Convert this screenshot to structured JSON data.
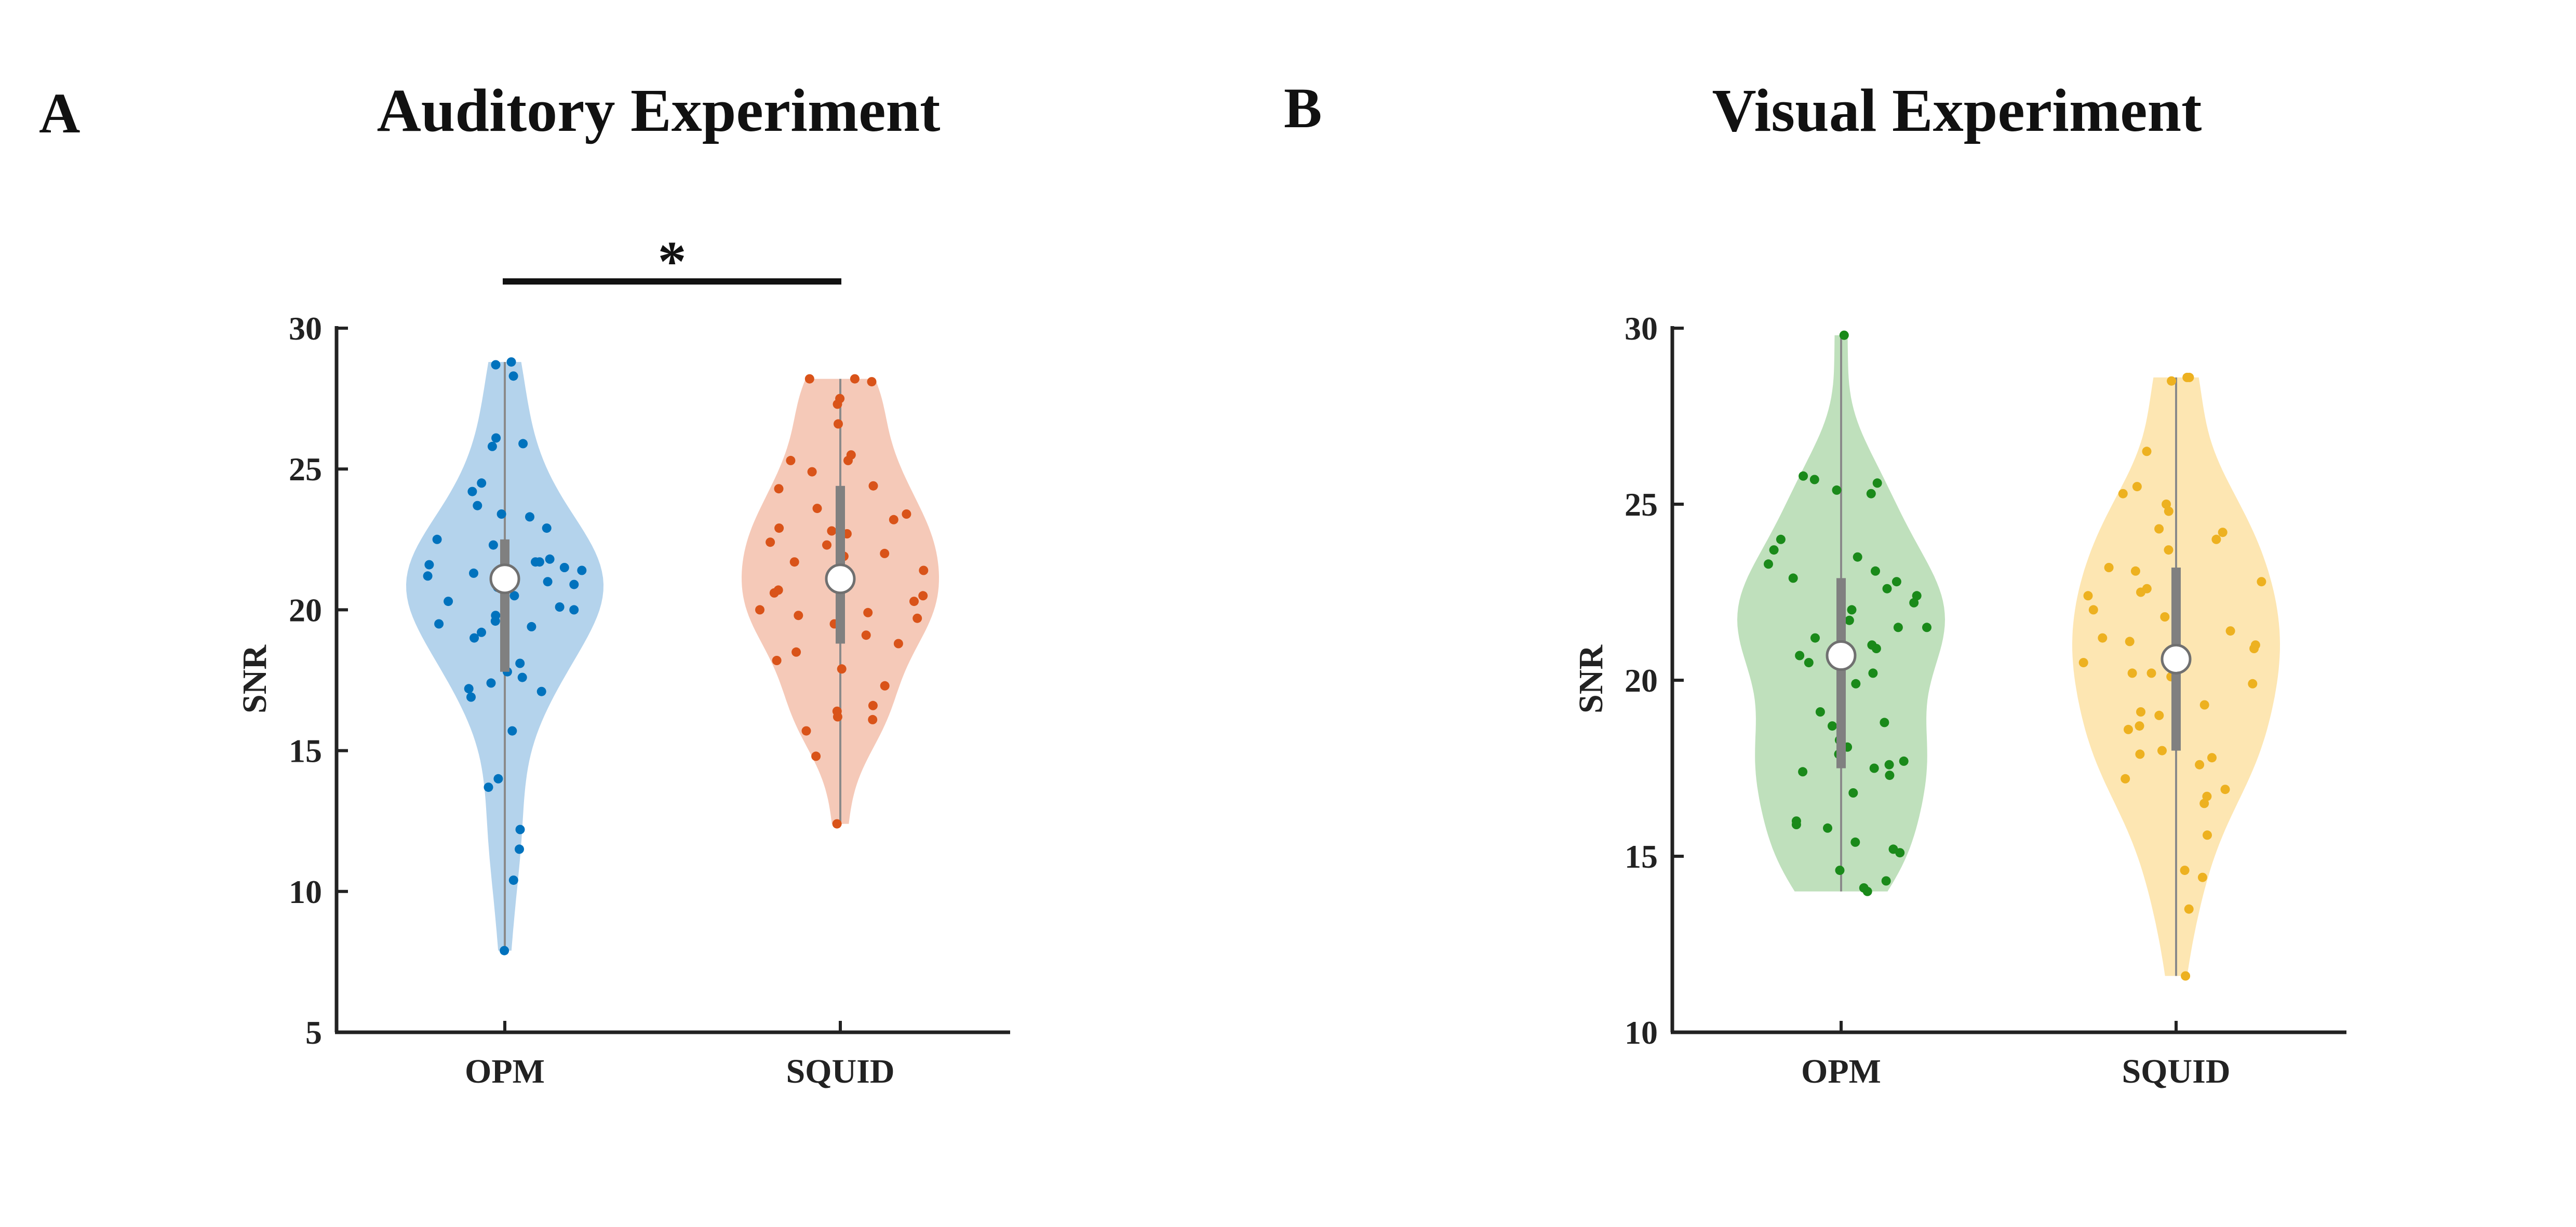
{
  "figure": {
    "panel_letters": [
      "A",
      "B"
    ]
  },
  "chart_data": [
    {
      "type": "violin",
      "panel": "A",
      "title": "Auditory Experiment",
      "xlabel": "",
      "ylabel": "SNR",
      "ylim": [
        5,
        30
      ],
      "yticks": [
        5,
        10,
        15,
        20,
        25,
        30
      ],
      "categories": [
        "OPM",
        "SQUID"
      ],
      "significance": {
        "between": [
          "OPM",
          "SQUID"
        ],
        "label": "*"
      },
      "series": [
        {
          "category": "OPM",
          "color": "#0072BD",
          "fill_color": "#B4D3EC",
          "median": 21.1,
          "q1": 17.8,
          "q3": 22.5,
          "min": 7.9,
          "max": 28.8,
          "points": [
            28.8,
            28.7,
            28.3,
            26.1,
            25.9,
            25.8,
            24.5,
            24.2,
            23.7,
            23.4,
            23.3,
            22.9,
            22.5,
            22.3,
            21.8,
            21.7,
            21.7,
            21.6,
            21.5,
            21.4,
            21.3,
            21.2,
            21.1,
            21.0,
            20.9,
            20.8,
            20.5,
            20.3,
            20.1,
            20.0,
            19.8,
            19.6,
            19.5,
            19.4,
            19.2,
            19.0,
            18.1,
            17.8,
            17.6,
            17.4,
            17.2,
            17.1,
            16.9,
            15.7,
            14.0,
            13.7,
            12.2,
            11.5,
            10.4,
            7.9
          ]
        },
        {
          "category": "SQUID",
          "color": "#D95319",
          "fill_color": "#F5C9B8",
          "median": 21.1,
          "q1": 18.8,
          "q3": 24.4,
          "min": 12.4,
          "max": 28.2,
          "points": [
            28.2,
            28.2,
            28.1,
            27.5,
            27.3,
            26.6,
            25.5,
            25.3,
            25.3,
            24.9,
            24.4,
            24.3,
            23.6,
            23.4,
            23.2,
            22.9,
            22.8,
            22.7,
            22.4,
            22.3,
            22.0,
            21.9,
            21.7,
            21.4,
            21.1,
            20.7,
            20.6,
            20.5,
            20.3,
            20.0,
            19.9,
            19.8,
            19.7,
            19.5,
            19.1,
            18.8,
            18.5,
            18.2,
            17.9,
            17.3,
            16.6,
            16.4,
            16.2,
            16.1,
            15.7,
            14.8,
            12.4
          ]
        }
      ]
    },
    {
      "type": "violin",
      "panel": "B",
      "title": "Visual Experiment",
      "xlabel": "",
      "ylabel": "SNR",
      "ylim": [
        10,
        30
      ],
      "yticks": [
        10,
        15,
        20,
        25,
        30
      ],
      "categories": [
        "OPM",
        "SQUID"
      ],
      "series": [
        {
          "category": "OPM",
          "color": "#1A8A1A",
          "fill_color": "#BFE0BC",
          "median": 20.7,
          "q1": 17.5,
          "q3": 22.9,
          "min": 14.0,
          "max": 29.8,
          "points": [
            29.8,
            25.8,
            25.7,
            25.6,
            25.4,
            25.3,
            24.0,
            23.7,
            23.5,
            23.3,
            23.1,
            22.9,
            22.8,
            22.6,
            22.4,
            22.2,
            22.0,
            21.7,
            21.5,
            21.5,
            21.2,
            21.0,
            20.9,
            20.9,
            20.7,
            20.5,
            20.2,
            19.9,
            19.1,
            18.8,
            18.7,
            18.3,
            18.1,
            17.9,
            17.7,
            17.6,
            17.5,
            17.4,
            17.3,
            16.8,
            16.0,
            15.9,
            15.8,
            15.4,
            15.2,
            15.1,
            14.6,
            14.3,
            14.1,
            14.0
          ]
        },
        {
          "category": "SQUID",
          "color": "#EDB120",
          "fill_color": "#FDE6B2",
          "median": 20.6,
          "q1": 18.0,
          "q3": 23.2,
          "min": 11.6,
          "max": 28.6,
          "points": [
            28.6,
            28.6,
            28.5,
            26.5,
            25.5,
            25.3,
            25.0,
            24.8,
            24.3,
            24.2,
            24.0,
            23.7,
            23.2,
            23.1,
            22.8,
            22.6,
            22.5,
            22.4,
            22.0,
            21.8,
            21.4,
            21.2,
            21.1,
            21.0,
            20.9,
            20.5,
            20.2,
            20.2,
            20.1,
            19.9,
            19.3,
            19.1,
            19.0,
            18.7,
            18.6,
            18.0,
            17.9,
            17.8,
            17.6,
            17.2,
            16.9,
            16.7,
            16.5,
            15.6,
            14.6,
            14.4,
            13.5,
            11.6
          ]
        }
      ]
    }
  ]
}
